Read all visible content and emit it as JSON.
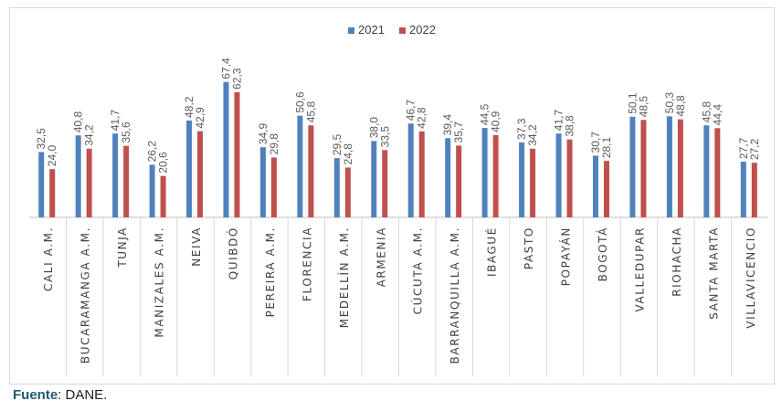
{
  "chart_data": {
    "type": "bar",
    "categories": [
      "CALI A.M.",
      "BUCARAMANGA A.M.",
      "TUNJA",
      "MANIZALES A.M.",
      "NEIVA",
      "QUIBDÓ",
      "PEREIRA A.M.",
      "FLORENCIA",
      "MEDELLÍN A.M.",
      "ARMENIA",
      "CÚCUTA A.M.",
      "BARRANQUILLA A.M.",
      "IBAGUÉ",
      "PASTO",
      "POPAYÁN",
      "BOGOTÁ",
      "VALLEDUPAR",
      "RIOHACHA",
      "SANTA MARTA",
      "VILLAVICENCIO"
    ],
    "series": [
      {
        "name": "2021",
        "color": "#4f81bd",
        "values": [
          32.5,
          40.8,
          41.7,
          26.2,
          48.2,
          67.4,
          34.9,
          50.6,
          29.5,
          38.0,
          46.7,
          39.4,
          44.5,
          37.3,
          41.7,
          30.7,
          50.1,
          50.3,
          45.8,
          27.7
        ],
        "labels": [
          "32,5",
          "40,8",
          "41,7",
          "26,2",
          "48,2",
          "67,4",
          "34,9",
          "50,6",
          "29,5",
          "38,0",
          "46,7",
          "39,4",
          "44,5",
          "37,3",
          "41,7",
          "30,7",
          "50,1",
          "50,3",
          "45,8",
          "27,7"
        ]
      },
      {
        "name": "2022",
        "color": "#c0504d",
        "values": [
          24.0,
          34.2,
          35.6,
          20.6,
          42.9,
          62.3,
          29.8,
          45.8,
          24.8,
          33.5,
          42.8,
          35.7,
          40.9,
          34.2,
          38.8,
          28.1,
          48.5,
          48.8,
          44.4,
          27.2
        ],
        "labels": [
          "24,0",
          "34,2",
          "35,6",
          "20,6",
          "42,9",
          "62,3",
          "29,8",
          "45,8",
          "24,8",
          "33,5",
          "42,8",
          "35,7",
          "40,9",
          "34,2",
          "38,8",
          "28,1",
          "48,5",
          "48,8",
          "44,4",
          "27,2"
        ]
      }
    ],
    "ylim": [
      0,
      75
    ],
    "legend_position": "top-center",
    "grid": false
  },
  "source": {
    "label": "Fuente",
    "text": ": DANE."
  }
}
